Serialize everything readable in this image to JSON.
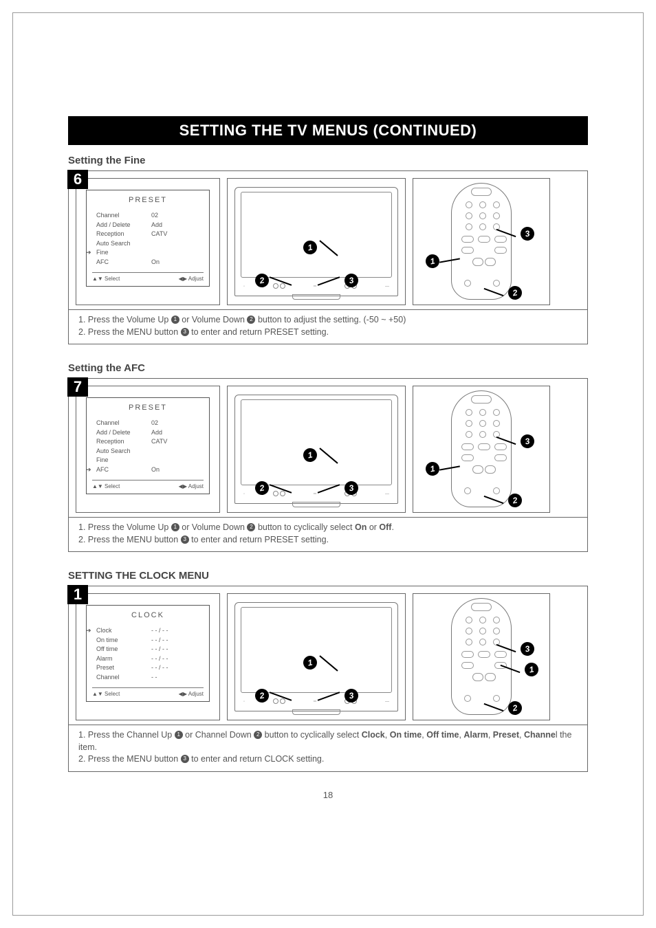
{
  "pageTitle": "SETTING THE TV MENUS (CONTINUED)",
  "pageNumber": "18",
  "sections": [
    {
      "heading": "Setting the Fine",
      "stepBadge": "6",
      "osd": {
        "title": "PRESET",
        "rows": [
          {
            "label": "Channel",
            "value": "02",
            "selected": false
          },
          {
            "label": "Add / Delete",
            "value": "Add",
            "selected": false
          },
          {
            "label": "Reception",
            "value": "CATV",
            "selected": false
          },
          {
            "label": "Auto Search",
            "value": "",
            "selected": false
          },
          {
            "label": "Fine",
            "value": "",
            "selected": true
          },
          {
            "label": "AFC",
            "value": "On",
            "selected": false
          }
        ],
        "footerLeft": "▲▼ Select",
        "footerRight": "◀▶ Adjust"
      },
      "tvCallouts": [
        "1",
        "2",
        "3"
      ],
      "remoteCallouts": [
        "1",
        "2",
        "3"
      ],
      "instructions": [
        {
          "prefix": "1. Press the Volume Up ",
          "c1": "1",
          "mid": " or Volume Down ",
          "c2": "2",
          "suffix": " button to adjust the setting. (-50 ~ +50)"
        },
        {
          "prefix": "2. Press the MENU button ",
          "c1": "3",
          "mid": "",
          "c2": "",
          "suffix": " to enter and return PRESET setting."
        }
      ]
    },
    {
      "heading": "Setting the AFC",
      "stepBadge": "7",
      "osd": {
        "title": "PRESET",
        "rows": [
          {
            "label": "Channel",
            "value": "02",
            "selected": false
          },
          {
            "label": "Add / Delete",
            "value": "Add",
            "selected": false
          },
          {
            "label": "Reception",
            "value": "CATV",
            "selected": false
          },
          {
            "label": "Auto Search",
            "value": "",
            "selected": false
          },
          {
            "label": "Fine",
            "value": "",
            "selected": false
          },
          {
            "label": "AFC",
            "value": "On",
            "selected": true
          }
        ],
        "footerLeft": "▲▼ Select",
        "footerRight": "◀▶ Adjust"
      },
      "tvCallouts": [
        "1",
        "2",
        "3"
      ],
      "remoteCallouts": [
        "1",
        "2",
        "3"
      ],
      "instructions": [
        {
          "prefix": "1. Press the Volume Up ",
          "c1": "1",
          "mid": " or Volume Down ",
          "c2": "2",
          "suffix": " button to cyclically select ",
          "bold1": "On",
          "between": " or ",
          "bold2": "Off",
          "tail": "."
        },
        {
          "prefix": "2. Press the MENU button ",
          "c1": "3",
          "mid": "",
          "c2": "",
          "suffix": " to enter and return PRESET setting."
        }
      ]
    },
    {
      "heading": "SETTING THE CLOCK MENU",
      "stepBadge": "1",
      "osd": {
        "title": "CLOCK",
        "rows": [
          {
            "label": "Clock",
            "value": "- - / - -",
            "selected": true
          },
          {
            "label": "On time",
            "value": "- - / - -",
            "selected": false
          },
          {
            "label": "Off time",
            "value": "- - / - -",
            "selected": false
          },
          {
            "label": "Alarm",
            "value": "- - / - -",
            "selected": false
          },
          {
            "label": "Preset",
            "value": "- - / - -",
            "selected": false
          },
          {
            "label": "Channel",
            "value": "- -",
            "selected": false
          }
        ],
        "footerLeft": "▲▼ Select",
        "footerRight": "◀▶ Adjust"
      },
      "tvCallouts": [
        "1",
        "2",
        "3"
      ],
      "remoteCallouts": [
        "1",
        "2",
        "3"
      ],
      "instructions": [
        {
          "prefix": "1. Press the Channel Up ",
          "c1": "1",
          "mid": " or Channel Down ",
          "c2": "2",
          "suffix": " button to cyclically select ",
          "bolds": [
            "Clock",
            "On time",
            "Off time",
            "Alarm",
            "Preset",
            "Channe"
          ],
          "tail2": "l the item."
        },
        {
          "prefix": "2. Press the MENU button ",
          "c1": "3",
          "mid": "",
          "c2": "",
          "suffix": " to enter and return CLOCK setting."
        }
      ]
    }
  ],
  "colors": {
    "text": "#4a4a4a",
    "border": "#666666",
    "black": "#000000",
    "white": "#ffffff"
  }
}
